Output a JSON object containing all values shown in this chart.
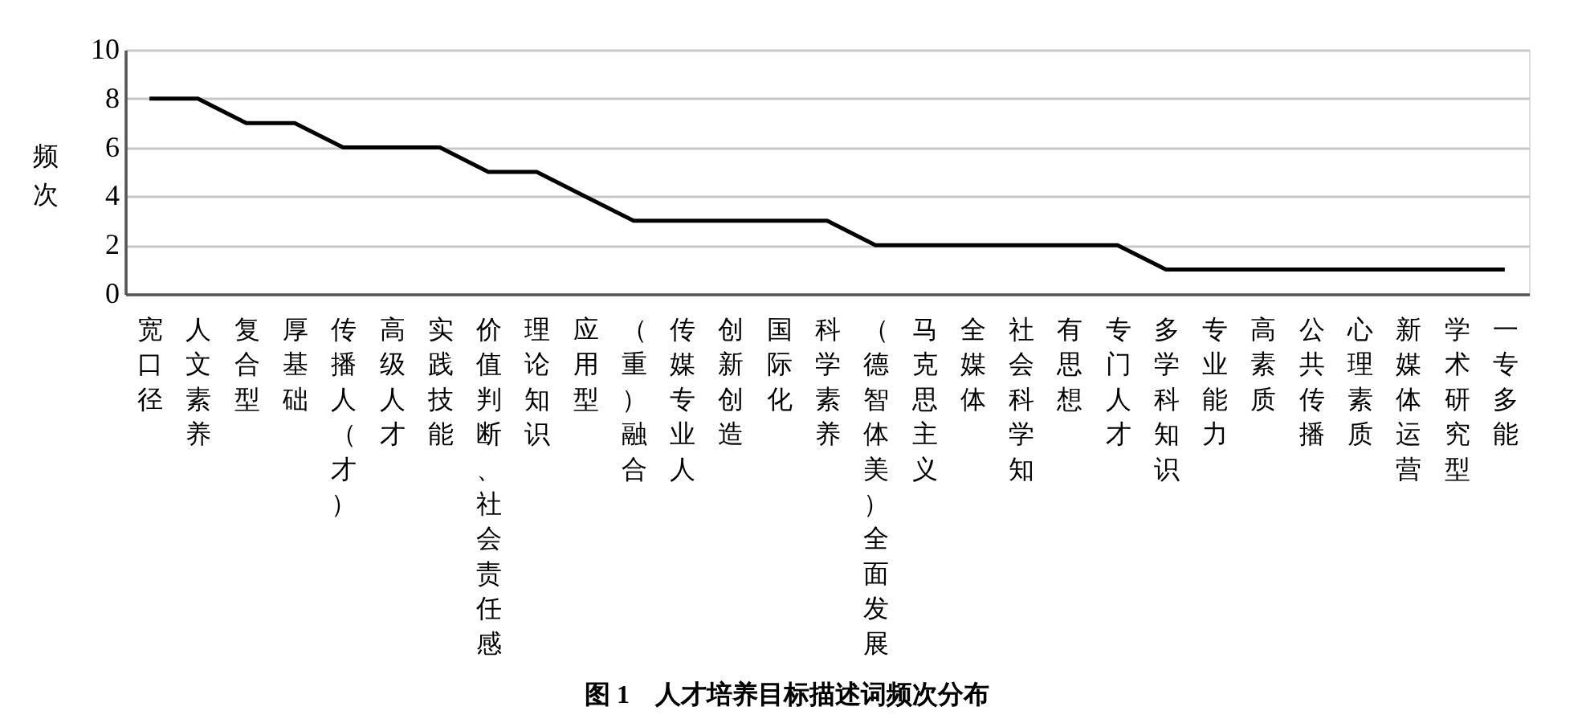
{
  "chart_data": {
    "type": "line",
    "title": "图 1　人才培养目标描述词频次分布",
    "ylabel": "频次",
    "categories": [
      "宽口径",
      "人文素养",
      "复合型",
      "厚基础",
      "传播人（才）",
      "高级人才",
      "实践技能",
      "价值判断、社会责任感",
      "理论知识",
      "应用型",
      "（重）融合",
      "传媒专业人",
      "创新创造",
      "国际化",
      "科学素养",
      "（德智体美）全面发展",
      "马克思主义",
      "全媒体",
      "社会科学知",
      "有思想",
      "专门人才",
      "多学科知识",
      "专业能力",
      "高素质",
      "公共传播",
      "心理素质",
      "新媒体运营",
      "学术研究型",
      "一专多能"
    ],
    "values": [
      8,
      8,
      7,
      7,
      6,
      6,
      6,
      5,
      5,
      4,
      3,
      3,
      3,
      3,
      3,
      2,
      2,
      2,
      2,
      2,
      2,
      1,
      1,
      1,
      1,
      1,
      1,
      1,
      1
    ],
    "color": "#000000",
    "ylim": [
      0,
      10
    ],
    "yticks": [
      0,
      2,
      4,
      6,
      8,
      10
    ],
    "grid": "y"
  }
}
